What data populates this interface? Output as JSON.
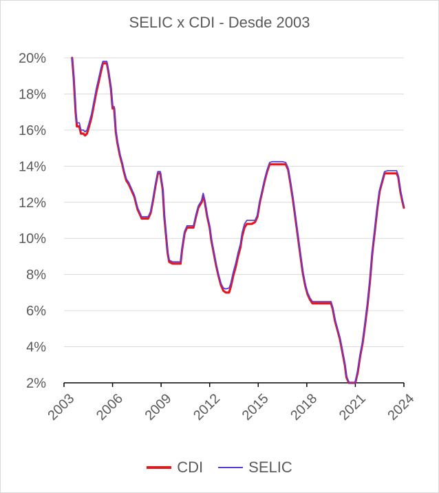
{
  "chart_data": {
    "type": "line",
    "title": "SELIC x CDI - Desde 2003",
    "xlabel": "",
    "ylabel": "",
    "xlim": [
      2003,
      2024
    ],
    "ylim": [
      2,
      20
    ],
    "x_ticks": [
      "2003",
      "2006",
      "2009",
      "2012",
      "2015",
      "2018",
      "2021",
      "2024"
    ],
    "y_ticks": [
      "2%",
      "4%",
      "6%",
      "8%",
      "10%",
      "12%",
      "14%",
      "16%",
      "18%",
      "20%"
    ],
    "grid": "horizontal",
    "legend_position": "bottom",
    "series": [
      {
        "name": "CDI",
        "color": "#e8161b",
        "points": [
          [
            2003.5,
            20.0
          ],
          [
            2003.6,
            18.9
          ],
          [
            2003.72,
            17.0
          ],
          [
            2003.8,
            16.2
          ],
          [
            2003.95,
            16.2
          ],
          [
            2004.05,
            15.8
          ],
          [
            2004.2,
            15.8
          ],
          [
            2004.3,
            15.7
          ],
          [
            2004.42,
            15.8
          ],
          [
            2004.55,
            16.2
          ],
          [
            2004.7,
            16.7
          ],
          [
            2004.85,
            17.4
          ],
          [
            2005.0,
            18.1
          ],
          [
            2005.15,
            18.7
          ],
          [
            2005.3,
            19.3
          ],
          [
            2005.4,
            19.7
          ],
          [
            2005.65,
            19.7
          ],
          [
            2005.75,
            19.2
          ],
          [
            2005.9,
            18.3
          ],
          [
            2006.0,
            17.2
          ],
          [
            2006.1,
            17.2
          ],
          [
            2006.2,
            15.9
          ],
          [
            2006.3,
            15.3
          ],
          [
            2006.45,
            14.6
          ],
          [
            2006.6,
            14.1
          ],
          [
            2006.7,
            13.7
          ],
          [
            2006.85,
            13.2
          ],
          [
            2007.0,
            13.0
          ],
          [
            2007.2,
            12.6
          ],
          [
            2007.35,
            12.3
          ],
          [
            2007.55,
            11.6
          ],
          [
            2007.7,
            11.3
          ],
          [
            2007.8,
            11.1
          ],
          [
            2008.0,
            11.1
          ],
          [
            2008.2,
            11.1
          ],
          [
            2008.35,
            11.4
          ],
          [
            2008.5,
            12.1
          ],
          [
            2008.65,
            12.9
          ],
          [
            2008.8,
            13.6
          ],
          [
            2008.95,
            13.6
          ],
          [
            2009.0,
            13.3
          ],
          [
            2009.1,
            12.7
          ],
          [
            2009.2,
            11.2
          ],
          [
            2009.3,
            10.2
          ],
          [
            2009.4,
            9.2
          ],
          [
            2009.5,
            8.7
          ],
          [
            2009.7,
            8.6
          ],
          [
            2010.0,
            8.6
          ],
          [
            2010.2,
            8.6
          ],
          [
            2010.3,
            9.4
          ],
          [
            2010.45,
            10.3
          ],
          [
            2010.6,
            10.6
          ],
          [
            2010.8,
            10.6
          ],
          [
            2011.0,
            10.6
          ],
          [
            2011.15,
            11.2
          ],
          [
            2011.3,
            11.7
          ],
          [
            2011.5,
            12.0
          ],
          [
            2011.6,
            12.4
          ],
          [
            2011.7,
            12.0
          ],
          [
            2011.85,
            11.2
          ],
          [
            2012.0,
            10.6
          ],
          [
            2012.1,
            9.9
          ],
          [
            2012.25,
            9.2
          ],
          [
            2012.4,
            8.5
          ],
          [
            2012.55,
            7.9
          ],
          [
            2012.7,
            7.4
          ],
          [
            2012.85,
            7.1
          ],
          [
            2013.0,
            7.0
          ],
          [
            2013.2,
            7.0
          ],
          [
            2013.3,
            7.3
          ],
          [
            2013.45,
            7.9
          ],
          [
            2013.6,
            8.4
          ],
          [
            2013.75,
            9.0
          ],
          [
            2013.9,
            9.5
          ],
          [
            2014.0,
            10.1
          ],
          [
            2014.15,
            10.6
          ],
          [
            2014.3,
            10.8
          ],
          [
            2014.6,
            10.8
          ],
          [
            2014.8,
            10.9
          ],
          [
            2014.95,
            11.2
          ],
          [
            2015.1,
            12.0
          ],
          [
            2015.25,
            12.6
          ],
          [
            2015.4,
            13.2
          ],
          [
            2015.55,
            13.7
          ],
          [
            2015.7,
            14.1
          ],
          [
            2015.85,
            14.1
          ],
          [
            2016.5,
            14.1
          ],
          [
            2016.7,
            14.1
          ],
          [
            2016.85,
            13.8
          ],
          [
            2017.0,
            13.0
          ],
          [
            2017.15,
            12.1
          ],
          [
            2017.3,
            11.1
          ],
          [
            2017.45,
            10.1
          ],
          [
            2017.6,
            9.1
          ],
          [
            2017.75,
            8.1
          ],
          [
            2017.9,
            7.4
          ],
          [
            2018.05,
            6.9
          ],
          [
            2018.2,
            6.6
          ],
          [
            2018.35,
            6.4
          ],
          [
            2019.0,
            6.4
          ],
          [
            2019.5,
            6.4
          ],
          [
            2019.6,
            6.1
          ],
          [
            2019.75,
            5.4
          ],
          [
            2019.9,
            4.9
          ],
          [
            2020.05,
            4.4
          ],
          [
            2020.2,
            3.7
          ],
          [
            2020.35,
            3.0
          ],
          [
            2020.45,
            2.3
          ],
          [
            2020.6,
            2.0
          ],
          [
            2021.0,
            1.9
          ],
          [
            2021.15,
            2.6
          ],
          [
            2021.3,
            3.5
          ],
          [
            2021.45,
            4.2
          ],
          [
            2021.6,
            5.2
          ],
          [
            2021.75,
            6.3
          ],
          [
            2021.9,
            7.6
          ],
          [
            2022.05,
            9.2
          ],
          [
            2022.2,
            10.4
          ],
          [
            2022.35,
            11.6
          ],
          [
            2022.5,
            12.6
          ],
          [
            2022.65,
            13.1
          ],
          [
            2022.8,
            13.6
          ],
          [
            2023.0,
            13.6
          ],
          [
            2023.55,
            13.6
          ],
          [
            2023.65,
            13.4
          ],
          [
            2023.78,
            12.6
          ],
          [
            2023.92,
            12.0
          ],
          [
            2024.0,
            11.7
          ]
        ]
      },
      {
        "name": "SELIC",
        "color": "#5b3cd6",
        "points": [
          [
            2003.5,
            20.0
          ],
          [
            2003.6,
            19.0
          ],
          [
            2003.72,
            17.2
          ],
          [
            2003.8,
            16.4
          ],
          [
            2003.95,
            16.4
          ],
          [
            2004.05,
            16.0
          ],
          [
            2004.2,
            16.0
          ],
          [
            2004.3,
            15.9
          ],
          [
            2004.42,
            16.0
          ],
          [
            2004.55,
            16.4
          ],
          [
            2004.7,
            16.9
          ],
          [
            2004.85,
            17.6
          ],
          [
            2005.0,
            18.3
          ],
          [
            2005.15,
            18.9
          ],
          [
            2005.3,
            19.5
          ],
          [
            2005.4,
            19.8
          ],
          [
            2005.65,
            19.8
          ],
          [
            2005.75,
            19.3
          ],
          [
            2005.9,
            18.4
          ],
          [
            2006.0,
            17.3
          ],
          [
            2006.1,
            17.3
          ],
          [
            2006.2,
            16.0
          ],
          [
            2006.3,
            15.4
          ],
          [
            2006.45,
            14.7
          ],
          [
            2006.6,
            14.2
          ],
          [
            2006.7,
            13.8
          ],
          [
            2006.85,
            13.3
          ],
          [
            2007.0,
            13.1
          ],
          [
            2007.2,
            12.7
          ],
          [
            2007.35,
            12.4
          ],
          [
            2007.55,
            11.7
          ],
          [
            2007.7,
            11.4
          ],
          [
            2007.8,
            11.2
          ],
          [
            2008.0,
            11.2
          ],
          [
            2008.2,
            11.2
          ],
          [
            2008.35,
            11.5
          ],
          [
            2008.5,
            12.2
          ],
          [
            2008.65,
            13.0
          ],
          [
            2008.8,
            13.7
          ],
          [
            2008.95,
            13.7
          ],
          [
            2009.0,
            13.4
          ],
          [
            2009.1,
            12.8
          ],
          [
            2009.2,
            11.3
          ],
          [
            2009.3,
            10.3
          ],
          [
            2009.4,
            9.3
          ],
          [
            2009.5,
            8.8
          ],
          [
            2009.7,
            8.7
          ],
          [
            2010.0,
            8.7
          ],
          [
            2010.2,
            8.7
          ],
          [
            2010.3,
            9.5
          ],
          [
            2010.45,
            10.4
          ],
          [
            2010.6,
            10.7
          ],
          [
            2010.8,
            10.7
          ],
          [
            2011.0,
            10.7
          ],
          [
            2011.15,
            11.3
          ],
          [
            2011.3,
            11.8
          ],
          [
            2011.5,
            12.1
          ],
          [
            2011.6,
            12.5
          ],
          [
            2011.7,
            12.1
          ],
          [
            2011.85,
            11.3
          ],
          [
            2012.0,
            10.7
          ],
          [
            2012.1,
            10.0
          ],
          [
            2012.25,
            9.3
          ],
          [
            2012.4,
            8.6
          ],
          [
            2012.55,
            8.0
          ],
          [
            2012.7,
            7.5
          ],
          [
            2012.85,
            7.25
          ],
          [
            2013.0,
            7.2
          ],
          [
            2013.2,
            7.25
          ],
          [
            2013.3,
            7.5
          ],
          [
            2013.45,
            8.1
          ],
          [
            2013.6,
            8.6
          ],
          [
            2013.75,
            9.2
          ],
          [
            2013.9,
            9.7
          ],
          [
            2014.0,
            10.3
          ],
          [
            2014.15,
            10.8
          ],
          [
            2014.3,
            11.0
          ],
          [
            2014.6,
            11.0
          ],
          [
            2014.8,
            11.0
          ],
          [
            2014.95,
            11.3
          ],
          [
            2015.1,
            12.1
          ],
          [
            2015.25,
            12.7
          ],
          [
            2015.4,
            13.3
          ],
          [
            2015.55,
            13.8
          ],
          [
            2015.7,
            14.2
          ],
          [
            2015.85,
            14.25
          ],
          [
            2016.5,
            14.25
          ],
          [
            2016.7,
            14.2
          ],
          [
            2016.85,
            13.9
          ],
          [
            2017.0,
            13.1
          ],
          [
            2017.15,
            12.2
          ],
          [
            2017.3,
            11.2
          ],
          [
            2017.45,
            10.2
          ],
          [
            2017.6,
            9.2
          ],
          [
            2017.75,
            8.2
          ],
          [
            2017.9,
            7.5
          ],
          [
            2018.05,
            7.0
          ],
          [
            2018.2,
            6.7
          ],
          [
            2018.35,
            6.5
          ],
          [
            2019.0,
            6.5
          ],
          [
            2019.5,
            6.5
          ],
          [
            2019.6,
            6.2
          ],
          [
            2019.75,
            5.5
          ],
          [
            2019.9,
            5.0
          ],
          [
            2020.05,
            4.5
          ],
          [
            2020.2,
            3.8
          ],
          [
            2020.35,
            3.1
          ],
          [
            2020.45,
            2.4
          ],
          [
            2020.6,
            2.0
          ],
          [
            2021.0,
            2.0
          ],
          [
            2021.15,
            2.75
          ],
          [
            2021.3,
            3.6
          ],
          [
            2021.45,
            4.3
          ],
          [
            2021.6,
            5.3
          ],
          [
            2021.75,
            6.4
          ],
          [
            2021.9,
            7.7
          ],
          [
            2022.05,
            9.3
          ],
          [
            2022.2,
            10.5
          ],
          [
            2022.35,
            11.7
          ],
          [
            2022.5,
            12.7
          ],
          [
            2022.65,
            13.2
          ],
          [
            2022.8,
            13.7
          ],
          [
            2023.0,
            13.75
          ],
          [
            2023.55,
            13.75
          ],
          [
            2023.65,
            13.5
          ],
          [
            2023.78,
            12.7
          ],
          [
            2023.92,
            12.1
          ],
          [
            2024.0,
            11.75
          ]
        ]
      }
    ]
  }
}
